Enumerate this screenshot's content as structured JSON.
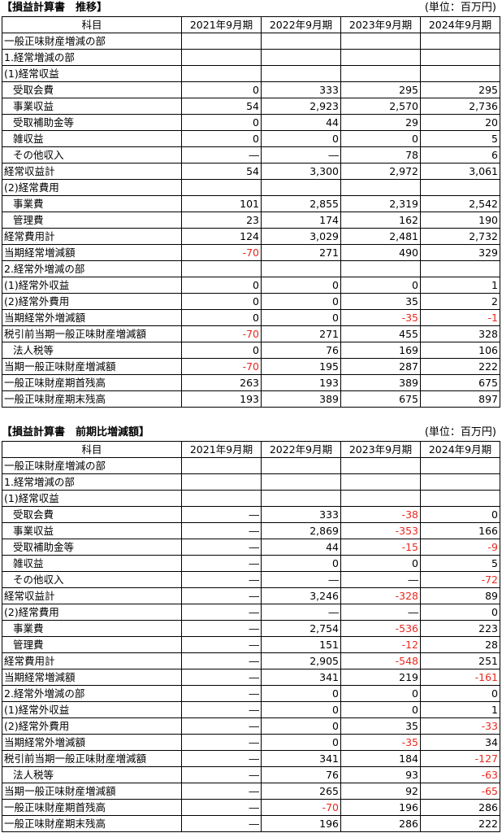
{
  "colors": {
    "negative": "#e8281e",
    "border": "#000000",
    "text": "#000000"
  },
  "trend": {
    "title": "【損益計算書　推移】",
    "unit": "(単位：百万円)",
    "headers": [
      "科目",
      "2021年9月期",
      "2022年9月期",
      "2023年9月期",
      "2024年9月期"
    ],
    "rows": [
      {
        "label": "一般正味財産増減の部",
        "indent": false,
        "values": [
          "",
          "",
          "",
          ""
        ]
      },
      {
        "label": "1.経常増減の部",
        "indent": false,
        "values": [
          "",
          "",
          "",
          ""
        ]
      },
      {
        "label": "(1)経常収益",
        "indent": false,
        "values": [
          "",
          "",
          "",
          ""
        ]
      },
      {
        "label": "受取会費",
        "indent": true,
        "values": [
          "0",
          "333",
          "295",
          "295"
        ]
      },
      {
        "label": "事業収益",
        "indent": true,
        "values": [
          "54",
          "2,923",
          "2,570",
          "2,736"
        ]
      },
      {
        "label": "受取補助金等",
        "indent": true,
        "values": [
          "0",
          "44",
          "29",
          "20"
        ]
      },
      {
        "label": "雑収益",
        "indent": true,
        "values": [
          "0",
          "0",
          "0",
          "5"
        ]
      },
      {
        "label": "その他収入",
        "indent": true,
        "values": [
          "―",
          "―",
          "78",
          "6"
        ]
      },
      {
        "label": "経常収益計",
        "indent": false,
        "values": [
          "54",
          "3,300",
          "2,972",
          "3,061"
        ]
      },
      {
        "label": "(2)経常費用",
        "indent": false,
        "values": [
          "",
          "",
          "",
          ""
        ]
      },
      {
        "label": "事業費",
        "indent": true,
        "values": [
          "101",
          "2,855",
          "2,319",
          "2,542"
        ]
      },
      {
        "label": "管理費",
        "indent": true,
        "values": [
          "23",
          "174",
          "162",
          "190"
        ]
      },
      {
        "label": "経常費用計",
        "indent": false,
        "values": [
          "124",
          "3,029",
          "2,481",
          "2,732"
        ]
      },
      {
        "label": "当期経常増減額",
        "indent": false,
        "values": [
          "-70",
          "271",
          "490",
          "329"
        ]
      },
      {
        "label": "2.経常外増減の部",
        "indent": false,
        "values": [
          "",
          "",
          "",
          ""
        ]
      },
      {
        "label": "(1)経常外収益",
        "indent": false,
        "values": [
          "0",
          "0",
          "0",
          "1"
        ]
      },
      {
        "label": "(2)経常外費用",
        "indent": false,
        "values": [
          "0",
          "0",
          "35",
          "2"
        ]
      },
      {
        "label": "当期経常外増減額",
        "indent": false,
        "values": [
          "0",
          "0",
          "-35",
          "-1"
        ]
      },
      {
        "label": "税引前当期一般正味財産増減額",
        "indent": false,
        "values": [
          "-70",
          "271",
          "455",
          "328"
        ]
      },
      {
        "label": "法人税等",
        "indent": true,
        "values": [
          "0",
          "76",
          "169",
          "106"
        ]
      },
      {
        "label": "当期一般正味財産増減額",
        "indent": false,
        "values": [
          "-70",
          "195",
          "287",
          "222"
        ]
      },
      {
        "label": "一般正味財産期首残高",
        "indent": false,
        "values": [
          "263",
          "193",
          "389",
          "675"
        ]
      },
      {
        "label": "一般正味財産期末残高",
        "indent": false,
        "values": [
          "193",
          "389",
          "675",
          "897"
        ]
      }
    ]
  },
  "diff": {
    "title": "【損益計算書　前期比増減額】",
    "unit": "(単位：百万円)",
    "headers": [
      "科目",
      "2021年9月期",
      "2022年9月期",
      "2023年9月期",
      "2024年9月期"
    ],
    "rows": [
      {
        "label": "一般正味財産増減の部",
        "indent": false,
        "values": [
          "",
          "",
          "",
          ""
        ]
      },
      {
        "label": "1.経常増減の部",
        "indent": false,
        "values": [
          "",
          "",
          "",
          ""
        ]
      },
      {
        "label": "(1)経常収益",
        "indent": false,
        "values": [
          "",
          "",
          "",
          ""
        ]
      },
      {
        "label": "受取会費",
        "indent": true,
        "values": [
          "―",
          "333",
          "-38",
          "0"
        ]
      },
      {
        "label": "事業収益",
        "indent": true,
        "values": [
          "―",
          "2,869",
          "-353",
          "166"
        ]
      },
      {
        "label": "受取補助金等",
        "indent": true,
        "values": [
          "―",
          "44",
          "-15",
          "-9"
        ]
      },
      {
        "label": "雑収益",
        "indent": true,
        "values": [
          "―",
          "0",
          "0",
          "5"
        ]
      },
      {
        "label": "その他収入",
        "indent": true,
        "values": [
          "―",
          "―",
          "―",
          "-72"
        ]
      },
      {
        "label": "経常収益計",
        "indent": false,
        "values": [
          "―",
          "3,246",
          "-328",
          "89"
        ]
      },
      {
        "label": "(2)経常費用",
        "indent": false,
        "values": [
          "―",
          "―",
          "―",
          "0"
        ]
      },
      {
        "label": "事業費",
        "indent": true,
        "values": [
          "―",
          "2,754",
          "-536",
          "223"
        ]
      },
      {
        "label": "管理費",
        "indent": true,
        "values": [
          "―",
          "151",
          "-12",
          "28"
        ]
      },
      {
        "label": "経常費用計",
        "indent": false,
        "values": [
          "―",
          "2,905",
          "-548",
          "251"
        ]
      },
      {
        "label": "当期経常増減額",
        "indent": false,
        "values": [
          "―",
          "341",
          "219",
          "-161"
        ]
      },
      {
        "label": "2.経常外増減の部",
        "indent": false,
        "values": [
          "―",
          "0",
          "0",
          "0"
        ]
      },
      {
        "label": "(1)経常外収益",
        "indent": false,
        "values": [
          "―",
          "0",
          "0",
          "1"
        ]
      },
      {
        "label": "(2)経常外費用",
        "indent": false,
        "values": [
          "―",
          "0",
          "35",
          "-33"
        ]
      },
      {
        "label": "当期経常外増減額",
        "indent": false,
        "values": [
          "―",
          "0",
          "-35",
          "34"
        ]
      },
      {
        "label": "税引前当期一般正味財産増減額",
        "indent": false,
        "values": [
          "―",
          "341",
          "184",
          "-127"
        ]
      },
      {
        "label": "法人税等",
        "indent": true,
        "values": [
          "―",
          "76",
          "93",
          "-63"
        ]
      },
      {
        "label": "当期一般正味財産増減額",
        "indent": false,
        "values": [
          "―",
          "265",
          "92",
          "-65"
        ]
      },
      {
        "label": "一般正味財産期首残高",
        "indent": false,
        "values": [
          "―",
          "-70",
          "196",
          "286"
        ]
      },
      {
        "label": "一般正味財産期末残高",
        "indent": false,
        "values": [
          "―",
          "196",
          "286",
          "222"
        ]
      }
    ]
  }
}
